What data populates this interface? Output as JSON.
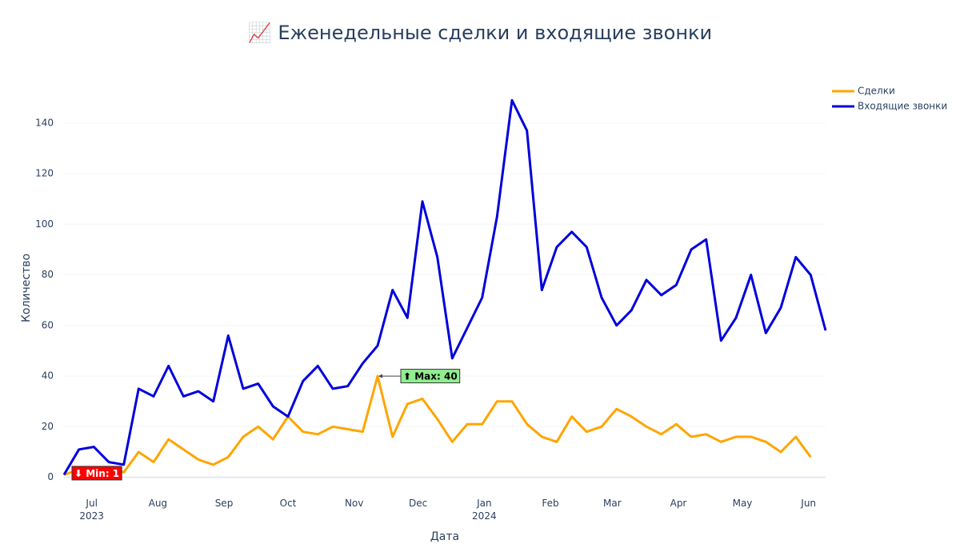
{
  "chart_data": {
    "type": "line",
    "title": "📈 Еженедельные сделки и входящие звонки",
    "xlabel": "Дата",
    "ylabel": "Количество",
    "x": [
      "2023-06-18",
      "2023-06-25",
      "2023-07-02",
      "2023-07-09",
      "2023-07-16",
      "2023-07-23",
      "2023-07-30",
      "2023-08-06",
      "2023-08-13",
      "2023-08-20",
      "2023-08-27",
      "2023-09-03",
      "2023-09-10",
      "2023-09-17",
      "2023-09-24",
      "2023-10-01",
      "2023-10-08",
      "2023-10-15",
      "2023-10-22",
      "2023-10-29",
      "2023-11-05",
      "2023-11-12",
      "2023-11-19",
      "2023-11-26",
      "2023-12-03",
      "2023-12-10",
      "2023-12-17",
      "2023-12-24",
      "2023-12-31",
      "2024-01-07",
      "2024-01-14",
      "2024-01-21",
      "2024-01-28",
      "2024-02-04",
      "2024-02-11",
      "2024-02-18",
      "2024-02-25",
      "2024-03-03",
      "2024-03-10",
      "2024-03-17",
      "2024-03-24",
      "2024-03-31",
      "2024-04-07",
      "2024-04-14",
      "2024-04-21",
      "2024-04-28",
      "2024-05-05",
      "2024-05-12",
      "2024-05-19",
      "2024-05-26",
      "2024-06-02",
      "2024-06-09"
    ],
    "series": [
      {
        "name": "Сделки",
        "color": "#ffa500",
        "values": [
          1,
          3,
          3,
          3,
          2,
          10,
          6,
          15,
          11,
          7,
          5,
          8,
          16,
          20,
          15,
          24,
          18,
          17,
          20,
          19,
          18,
          40,
          16,
          29,
          31,
          23,
          14,
          21,
          21,
          30,
          30,
          21,
          16,
          14,
          24,
          18,
          20,
          27,
          24,
          20,
          17,
          21,
          16,
          17,
          14,
          16,
          16,
          14,
          10,
          16,
          8,
          null
        ]
      },
      {
        "name": "Входящие звонки",
        "color": "#0000dd",
        "values": [
          1,
          11,
          12,
          6,
          5,
          35,
          32,
          44,
          32,
          34,
          30,
          56,
          35,
          37,
          28,
          24,
          38,
          44,
          35,
          36,
          45,
          52,
          74,
          63,
          109,
          87,
          47,
          59,
          71,
          103,
          149,
          137,
          74,
          91,
          97,
          91,
          71,
          60,
          66,
          78,
          72,
          76,
          90,
          94,
          54,
          63,
          80,
          57,
          67,
          87,
          80,
          58
        ]
      }
    ],
    "xlim": [
      "2023-06-18",
      "2024-06-09"
    ],
    "xticks": [
      {
        "value": "2023-07-01",
        "label": "Jul\n2023"
      },
      {
        "value": "2023-08-01",
        "label": "Aug"
      },
      {
        "value": "2023-09-01",
        "label": "Sep"
      },
      {
        "value": "2023-10-01",
        "label": "Oct"
      },
      {
        "value": "2023-11-01",
        "label": "Nov"
      },
      {
        "value": "2023-12-01",
        "label": "Dec"
      },
      {
        "value": "2024-01-01",
        "label": "Jan\n2024"
      },
      {
        "value": "2024-02-01",
        "label": "Feb"
      },
      {
        "value": "2024-03-01",
        "label": "Mar"
      },
      {
        "value": "2024-04-01",
        "label": "Apr"
      },
      {
        "value": "2024-05-01",
        "label": "May"
      },
      {
        "value": "2024-06-01",
        "label": "Jun"
      }
    ],
    "ylim": [
      -7.4,
      157
    ],
    "yticks": [
      0,
      20,
      40,
      60,
      80,
      100,
      120,
      140
    ],
    "grid": true,
    "legend": "top-right",
    "annotations": [
      {
        "text": "⬇ Min: 1",
        "x": "2023-06-18",
        "y": 1,
        "bgcolor": "#ff0000",
        "color": "#ffffff"
      },
      {
        "text": "⬆ Max: 40",
        "x": "2023-11-12",
        "y": 40,
        "bgcolor": "#90ee90",
        "color": "#000000"
      }
    ]
  }
}
